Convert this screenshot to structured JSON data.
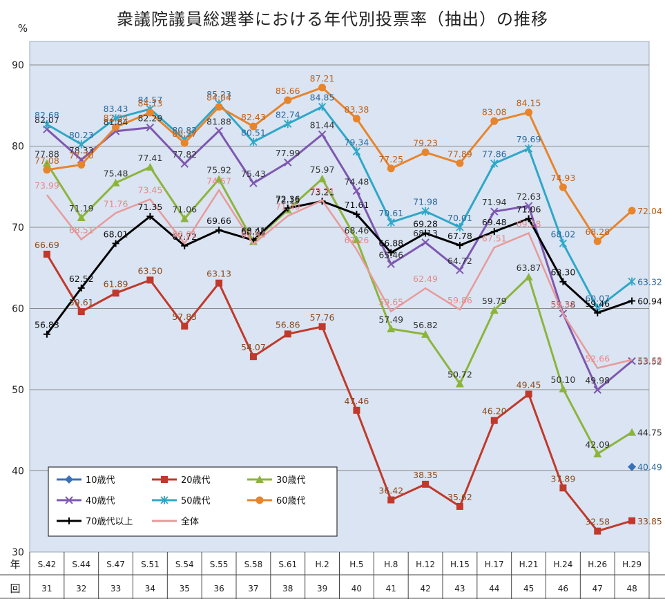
{
  "chart_data": {
    "type": "line",
    "title": "衆議院議員総選挙における年代別投票率（抽出）の推移",
    "ylabel": "%",
    "ylim": [
      30,
      90
    ],
    "yticks": [
      30,
      40,
      50,
      60,
      70,
      80,
      90
    ],
    "grid": true,
    "legend_position": "bottom-left",
    "row_labels": [
      "年",
      "回"
    ],
    "categories": [
      "S.42",
      "S.44",
      "S.47",
      "S.51",
      "S.54",
      "S.55",
      "S.58",
      "S.61",
      "H.2",
      "H.5",
      "H.8",
      "H.12",
      "H.15",
      "H.17",
      "H.21",
      "H.24",
      "H.26",
      "H.29"
    ],
    "election_numbers": [
      "31",
      "32",
      "33",
      "34",
      "35",
      "36",
      "37",
      "38",
      "39",
      "40",
      "41",
      "42",
      "43",
      "44",
      "45",
      "46",
      "47",
      "48"
    ],
    "series": [
      {
        "name": "10歳代",
        "color": "#3a70b8",
        "marker": "diamond",
        "values": [
          null,
          null,
          null,
          null,
          null,
          null,
          null,
          null,
          null,
          null,
          null,
          null,
          null,
          null,
          null,
          null,
          null,
          40.49
        ],
        "labels": [
          null,
          null,
          null,
          null,
          null,
          null,
          null,
          null,
          null,
          null,
          null,
          null,
          null,
          null,
          null,
          null,
          null,
          "40.49"
        ]
      },
      {
        "name": "20歳代",
        "color": "#c0392b",
        "marker": "square",
        "values": [
          66.69,
          59.61,
          61.89,
          63.5,
          57.83,
          63.13,
          54.07,
          56.86,
          57.76,
          47.46,
          36.42,
          38.35,
          35.62,
          46.2,
          49.45,
          37.89,
          32.58,
          33.85
        ],
        "labels": [
          "66.69",
          "59.61",
          "61.89",
          "63.50",
          "57.83",
          "63.13",
          "54.07",
          "56.86",
          "57.76",
          "47.46",
          "36.42",
          "38.35",
          "35.62",
          "46.20",
          "49.45",
          "37.89",
          "32.58",
          "33.85"
        ]
      },
      {
        "name": "30歳代",
        "color": "#8cb43c",
        "marker": "triangle",
        "values": [
          77.88,
          71.19,
          75.48,
          77.41,
          71.06,
          75.92,
          68.25,
          72.15,
          75.97,
          68.46,
          57.49,
          56.82,
          50.72,
          59.79,
          63.87,
          50.1,
          42.09,
          44.75
        ],
        "labels": [
          "77.88",
          "71.19",
          "75.48",
          "77.41",
          "71.06",
          "75.92",
          "68.25",
          "72.15",
          "75.97",
          "68.46",
          "57.49",
          "56.82",
          "50.72",
          "59.79",
          "63.87",
          "50.10",
          "42.09",
          "44.75"
        ]
      },
      {
        "name": "40歳代",
        "color": "#7e57b0",
        "marker": "x",
        "values": [
          82.07,
          78.33,
          81.84,
          82.29,
          77.82,
          81.88,
          75.43,
          77.99,
          81.44,
          74.48,
          65.46,
          68.13,
          64.72,
          71.94,
          72.63,
          59.38,
          49.98,
          53.52
        ],
        "labels": [
          "82.07",
          "78.33",
          "81.84",
          "82.29",
          "77.82",
          "81.88",
          "75.43",
          "77.99",
          "81.44",
          "74.48",
          "65.46",
          "68.13",
          "64.72",
          "71.94",
          "72.63",
          "59.38",
          "49.98",
          "53.52"
        ]
      },
      {
        "name": "50歳代",
        "color": "#2ea7c8",
        "marker": "asterisk",
        "values": [
          82.68,
          80.23,
          83.43,
          84.57,
          80.82,
          85.23,
          80.51,
          82.74,
          84.85,
          79.34,
          70.61,
          71.98,
          70.01,
          77.86,
          79.69,
          68.02,
          60.07,
          63.32
        ],
        "labels": [
          "82.68",
          "80.23",
          "83.43",
          "84.57",
          "80.82",
          "85.23",
          "80.51",
          "82.74",
          "84.85",
          "79.34",
          "70.61",
          "71.98",
          "70.01",
          "77.86",
          "79.69",
          "68.02",
          "60.07",
          "63.32"
        ]
      },
      {
        "name": "60歳代",
        "color": "#e8842a",
        "marker": "circle",
        "values": [
          77.08,
          77.7,
          82.34,
          84.13,
          80.37,
          84.84,
          82.43,
          85.66,
          87.21,
          83.38,
          77.25,
          79.23,
          77.89,
          83.08,
          84.15,
          74.93,
          68.28,
          72.04
        ],
        "labels": [
          "77.08",
          "77.70",
          "82.34",
          "84.13",
          "80.37",
          "84.84",
          "82.43",
          "85.66",
          "87.21",
          "83.38",
          "77.25",
          "79.23",
          "77.89",
          "83.08",
          "84.15",
          "74.93",
          "68.28",
          "72.04"
        ]
      },
      {
        "name": "70歳代以上",
        "color": "#000000",
        "marker": "plus",
        "values": [
          56.83,
          62.52,
          68.01,
          71.35,
          67.72,
          69.66,
          68.41,
          72.36,
          73.21,
          71.61,
          66.88,
          69.28,
          67.78,
          69.48,
          71.06,
          63.3,
          59.46,
          60.94
        ],
        "labels": [
          "56.83",
          "62.52",
          "68.01",
          "71.35",
          "67.72",
          "69.66",
          "68.41",
          "72.36",
          "73.21",
          "71.61",
          "66.88",
          "69.28",
          "67.78",
          "69.48",
          "71.06",
          "63.30",
          "59.46",
          "60.94"
        ]
      },
      {
        "name": "全体",
        "color": "#e89a9a",
        "marker": "none",
        "values": [
          73.99,
          68.51,
          71.76,
          73.45,
          68.01,
          74.57,
          67.94,
          71.4,
          73.31,
          67.26,
          59.65,
          62.49,
          59.86,
          67.51,
          69.28,
          59.32,
          52.66,
          53.68
        ],
        "labels": [
          "73.99",
          "68.51",
          "71.76",
          "73.45",
          "68.01",
          "74.57",
          "67.94",
          "71.40",
          "73.31",
          "67.26",
          "59.65",
          "62.49",
          "59.86",
          "67.51",
          "69.28",
          "59.32",
          "52.66",
          "53.68"
        ]
      }
    ]
  }
}
